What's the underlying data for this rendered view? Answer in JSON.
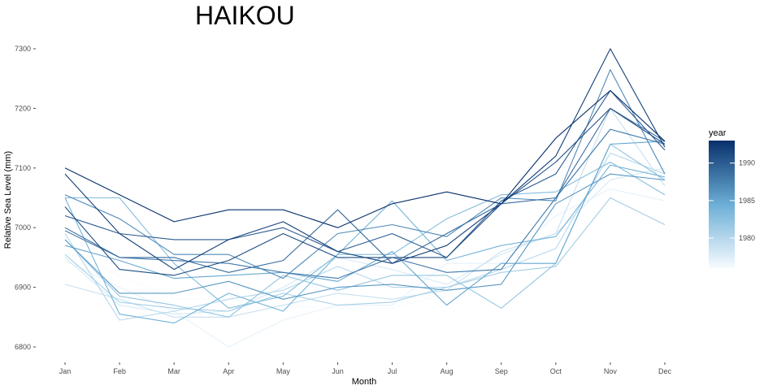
{
  "chart_data": {
    "type": "line",
    "title": "HAIKOU",
    "xlabel": "Month",
    "ylabel": "Relative Sea Level (mm)",
    "categories": [
      "Jan",
      "Feb",
      "Mar",
      "Apr",
      "May",
      "Jun",
      "Jul",
      "Aug",
      "Sep",
      "Oct",
      "Nov",
      "Dec"
    ],
    "ylim": [
      6785,
      7310
    ],
    "yticks": [
      6800,
      6900,
      7000,
      7100,
      7200,
      7300
    ],
    "grid": false,
    "color_scale": {
      "variable": "year",
      "range": [
        1976,
        1993
      ],
      "ticks": [
        1980,
        1985,
        1990
      ],
      "low_color": "#f7fbff",
      "high_color": "#08306b"
    },
    "legend": {
      "title": "year",
      "position": "right"
    },
    "series": [
      {
        "year": 1993,
        "values": [
          7100,
          7055,
          7010,
          7030,
          7030,
          7000,
          7040,
          7060,
          7040,
          7150,
          7230,
          7145
        ]
      },
      {
        "year": 1992,
        "values": [
          7090,
          6990,
          6930,
          6980,
          7010,
          6960,
          6940,
          6970,
          7040,
          7120,
          7300,
          7135
        ]
      },
      {
        "year": 1991,
        "values": [
          7035,
          6930,
          6920,
          6945,
          6990,
          6950,
          6950,
          6950,
          7040,
          7110,
          7200,
          7140
        ]
      },
      {
        "year": 1990,
        "values": [
          7020,
          6990,
          6980,
          6980,
          7000,
          6960,
          6990,
          6950,
          7045,
          7090,
          7230,
          7130
        ]
      },
      {
        "year": 1989,
        "values": [
          7000,
          6950,
          6950,
          6925,
          6945,
          7030,
          6940,
          6990,
          7040,
          7050,
          7200,
          7145
        ]
      },
      {
        "year": 1988,
        "values": [
          6995,
          6950,
          6945,
          6940,
          6925,
          6915,
          6950,
          6925,
          6930,
          7050,
          7165,
          7140
        ]
      },
      {
        "year": 1987,
        "values": [
          7055,
          7015,
          6955,
          6955,
          6915,
          6990,
          7005,
          6985,
          7050,
          7045,
          7265,
          7090
        ]
      },
      {
        "year": 1986,
        "values": [
          6980,
          6890,
          6890,
          6910,
          6880,
          6900,
          6905,
          6895,
          6905,
          7040,
          7090,
          7080
        ]
      },
      {
        "year": 1985,
        "values": [
          6970,
          6945,
          6915,
          6920,
          6925,
          6910,
          6960,
          6870,
          6940,
          6940,
          7140,
          7145
        ]
      },
      {
        "year": 1984,
        "values": [
          7050,
          6855,
          6840,
          6890,
          6860,
          6955,
          7045,
          6945,
          6970,
          6985,
          7105,
          7085
        ]
      },
      {
        "year": 1983,
        "values": [
          7050,
          7050,
          6940,
          6865,
          6885,
          6955,
          6955,
          7015,
          7055,
          7060,
          7110,
          7055
        ]
      },
      {
        "year": 1982,
        "values": [
          6980,
          6885,
          6870,
          6850,
          6920,
          6895,
          6920,
          6920,
          6865,
          6940,
          7140,
          7080
        ]
      },
      {
        "year": 1981,
        "values": [
          6955,
          6875,
          6865,
          6860,
          6890,
          6870,
          6875,
          6900,
          6925,
          6935,
          7050,
          7005
        ]
      },
      {
        "year": 1980,
        "values": [
          6990,
          6845,
          6860,
          6880,
          6895,
          6935,
          6900,
          6900,
          6930,
          6965,
          7125,
          7090
        ]
      },
      {
        "year": 1979,
        "values": [
          6905,
          6880,
          6850,
          6850,
          6870,
          6890,
          6880,
          6895,
          6960,
          6990,
          7200,
          7070
        ]
      },
      {
        "year": 1978,
        "values": [
          6950,
          6870,
          6855,
          6860,
          6900,
          6950,
          6930,
          6905,
          6955,
          6990,
          7080,
          7100
        ]
      },
      {
        "year": 1977,
        "values": [
          6945,
          6900,
          6860,
          6800,
          6845,
          6870,
          6870,
          6940,
          6940,
          7020,
          7065,
          7045
        ]
      },
      {
        "year": 1976,
        "values": [
          6960,
          6920,
          6880,
          6880,
          6870,
          6865,
          6865,
          6890,
          6920,
          7000,
          7090,
          7060
        ]
      }
    ]
  }
}
